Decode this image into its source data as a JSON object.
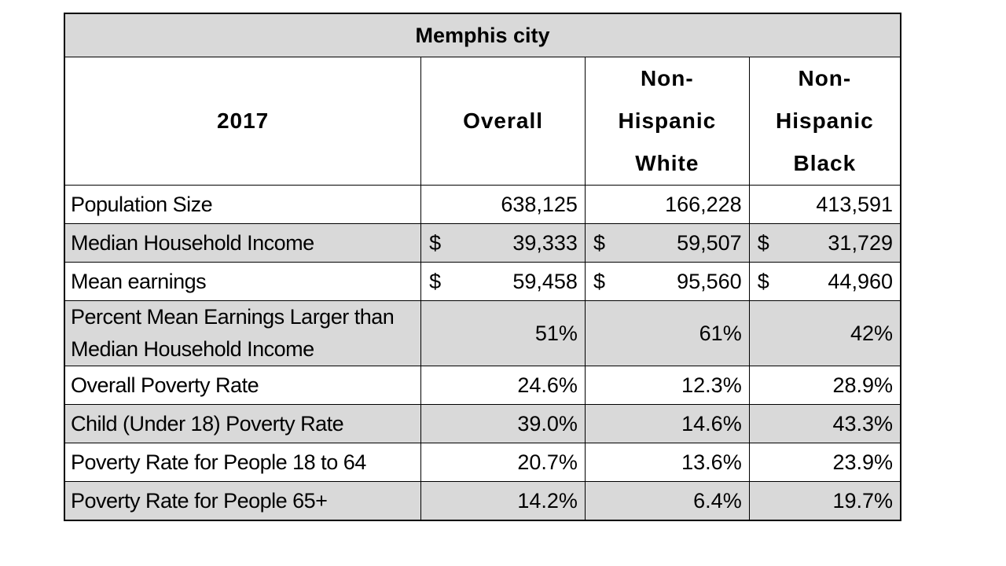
{
  "chart_data": {
    "type": "table",
    "title": "Memphis city",
    "header": {
      "year": "2017",
      "columns": [
        [
          "Overall"
        ],
        [
          "Non-",
          "Hispanic",
          "White"
        ],
        [
          "Non-",
          "Hispanic",
          "Black"
        ]
      ]
    },
    "rows": [
      {
        "label": "Population Size",
        "values": [
          "638,125",
          "166,228",
          "413,591"
        ],
        "currency": false
      },
      {
        "label": "Median Household Income",
        "values": [
          "39,333",
          "59,507",
          "31,729"
        ],
        "currency": true
      },
      {
        "label": "Mean earnings",
        "values": [
          "59,458",
          "95,560",
          "44,960"
        ],
        "currency": true
      },
      {
        "label": "Percent Mean Earnings Larger than Median Household Income",
        "label_lines": [
          "Percent Mean Earnings Larger than",
          "Median Household Income"
        ],
        "values": [
          "51%",
          "61%",
          "42%"
        ],
        "currency": false
      },
      {
        "label": "Overall Poverty Rate",
        "values": [
          "24.6%",
          "12.3%",
          "28.9%"
        ],
        "currency": false
      },
      {
        "label": "Child (Under 18) Poverty Rate",
        "values": [
          "39.0%",
          "14.6%",
          "43.3%"
        ],
        "currency": false
      },
      {
        "label": "Poverty Rate for People 18 to 64",
        "values": [
          "20.7%",
          "13.6%",
          "23.9%"
        ],
        "currency": false
      },
      {
        "label": "Poverty Rate for People 65+",
        "values": [
          "14.2%",
          "6.4%",
          "19.7%"
        ],
        "currency": false
      }
    ],
    "currency_symbol": "$"
  }
}
